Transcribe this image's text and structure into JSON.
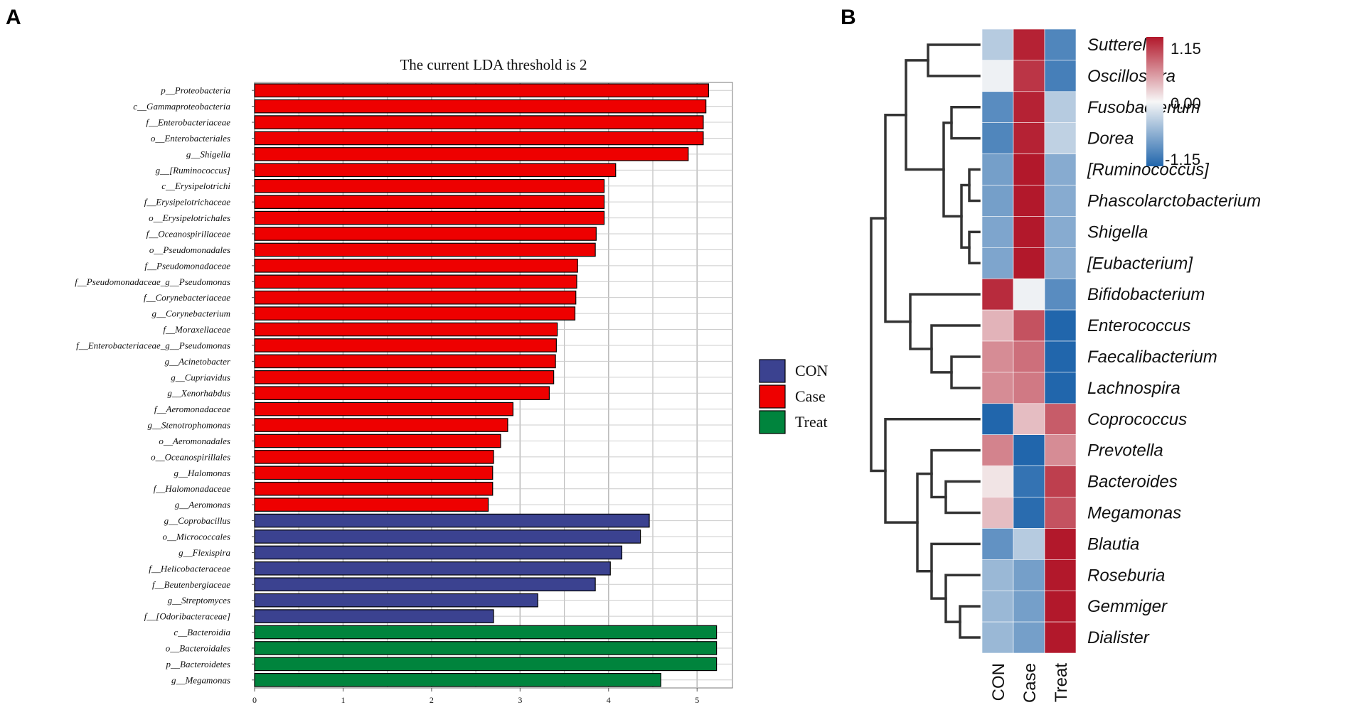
{
  "panels": {
    "a": "A",
    "b": "B"
  },
  "chart_data": [
    {
      "type": "bar",
      "orientation": "horizontal",
      "title": "The current LDA threshold is 2",
      "xlim": [
        0,
        5.4
      ],
      "xticks": [
        0,
        1,
        2,
        3,
        4,
        5
      ],
      "grid": true,
      "legend": {
        "placement": "right",
        "entries": [
          {
            "name": "CON",
            "color": "#3b4290"
          },
          {
            "name": "Case",
            "color": "#ee0000"
          },
          {
            "name": "Treat",
            "color": "#00843d"
          }
        ]
      },
      "bars": [
        {
          "label": "p__Proteobacteria",
          "value": 5.13,
          "group": "Case"
        },
        {
          "label": "c__Gammaproteobacteria",
          "value": 5.1,
          "group": "Case"
        },
        {
          "label": "f__Enterobacteriaceae",
          "value": 5.07,
          "group": "Case"
        },
        {
          "label": "o__Enterobacteriales",
          "value": 5.07,
          "group": "Case"
        },
        {
          "label": "g__Shigella",
          "value": 4.9,
          "group": "Case"
        },
        {
          "label": "g__[Ruminococcus]",
          "value": 4.08,
          "group": "Case"
        },
        {
          "label": "c__Erysipelotrichi",
          "value": 3.95,
          "group": "Case"
        },
        {
          "label": "f__Erysipelotrichaceae",
          "value": 3.95,
          "group": "Case"
        },
        {
          "label": "o__Erysipelotrichales",
          "value": 3.95,
          "group": "Case"
        },
        {
          "label": "f__Oceanospirillaceae",
          "value": 3.86,
          "group": "Case"
        },
        {
          "label": "o__Pseudomonadales",
          "value": 3.85,
          "group": "Case"
        },
        {
          "label": "f__Pseudomonadaceae",
          "value": 3.65,
          "group": "Case"
        },
        {
          "label": "f__Pseudomonadaceae_g__Pseudomonas",
          "value": 3.64,
          "group": "Case"
        },
        {
          "label": "f__Corynebacteriaceae",
          "value": 3.63,
          "group": "Case"
        },
        {
          "label": "g__Corynebacterium",
          "value": 3.62,
          "group": "Case"
        },
        {
          "label": "f__Moraxellaceae",
          "value": 3.42,
          "group": "Case"
        },
        {
          "label": "f__Enterobacteriaceae_g__Pseudomonas",
          "value": 3.41,
          "group": "Case"
        },
        {
          "label": "g__Acinetobacter",
          "value": 3.4,
          "group": "Case"
        },
        {
          "label": "g__Cupriavidus",
          "value": 3.38,
          "group": "Case"
        },
        {
          "label": "g__Xenorhabdus",
          "value": 3.33,
          "group": "Case"
        },
        {
          "label": "f__Aeromonadaceae",
          "value": 2.92,
          "group": "Case"
        },
        {
          "label": "g__Stenotrophomonas",
          "value": 2.86,
          "group": "Case"
        },
        {
          "label": "o__Aeromonadales",
          "value": 2.78,
          "group": "Case"
        },
        {
          "label": "o__Oceanospirillales",
          "value": 2.7,
          "group": "Case"
        },
        {
          "label": "g__Halomonas",
          "value": 2.69,
          "group": "Case"
        },
        {
          "label": "f__Halomonadaceae",
          "value": 2.69,
          "group": "Case"
        },
        {
          "label": "g__Aeromonas",
          "value": 2.64,
          "group": "Case"
        },
        {
          "label": "g__Coprobacillus",
          "value": 4.46,
          "group": "CON"
        },
        {
          "label": "o__Micrococcales",
          "value": 4.36,
          "group": "CON"
        },
        {
          "label": "g__Flexispira",
          "value": 4.15,
          "group": "CON"
        },
        {
          "label": "f__Helicobacteraceae",
          "value": 4.02,
          "group": "CON"
        },
        {
          "label": "f__Beutenbergiaceae",
          "value": 3.85,
          "group": "CON"
        },
        {
          "label": "g__Streptomyces",
          "value": 3.2,
          "group": "CON"
        },
        {
          "label": "f__[Odoribacteraceae]",
          "value": 2.7,
          "group": "CON"
        },
        {
          "label": "c__Bacteroidia",
          "value": 5.22,
          "group": "Treat"
        },
        {
          "label": "o__Bacteroidales",
          "value": 5.22,
          "group": "Treat"
        },
        {
          "label": "p__Bacteroidetes",
          "value": 5.22,
          "group": "Treat"
        },
        {
          "label": "g__Megamonas",
          "value": 4.59,
          "group": "Treat"
        }
      ]
    },
    {
      "type": "heatmap",
      "columns": [
        "CON",
        "Case",
        "Treat"
      ],
      "colorbar": {
        "max": 1.15,
        "mid": 0.0,
        "min": -1.15,
        "max_label": "1.15",
        "mid_label": "0.00",
        "min_label": "-1.15",
        "high_color": "#b2182b",
        "mid_color": "#f7f7f7",
        "low_color": "#2166ac"
      },
      "rows": [
        {
          "name": "Sutterella",
          "values": [
            -0.35,
            1.1,
            -0.9
          ]
        },
        {
          "name": "Oscillospira",
          "values": [
            -0.05,
            1.0,
            -0.95
          ]
        },
        {
          "name": "Fusobacterium",
          "values": [
            -0.85,
            1.1,
            -0.35
          ]
        },
        {
          "name": "Dorea",
          "values": [
            -0.9,
            1.1,
            -0.3
          ]
        },
        {
          "name": "[Ruminococcus]",
          "values": [
            -0.7,
            1.15,
            -0.6
          ]
        },
        {
          "name": "Phascolarctobacterium",
          "values": [
            -0.7,
            1.15,
            -0.6
          ]
        },
        {
          "name": "Shigella",
          "values": [
            -0.65,
            1.15,
            -0.6
          ]
        },
        {
          "name": "[Eubacterium]",
          "values": [
            -0.65,
            1.15,
            -0.6
          ]
        },
        {
          "name": "Bifidobacterium",
          "values": [
            1.05,
            -0.05,
            -0.85
          ]
        },
        {
          "name": "Enterococcus",
          "values": [
            0.35,
            0.85,
            -1.15
          ]
        },
        {
          "name": "Faecalibacterium",
          "values": [
            0.55,
            0.7,
            -1.15
          ]
        },
        {
          "name": "Lachnospira",
          "values": [
            0.55,
            0.65,
            -1.15
          ]
        },
        {
          "name": "Coprococcus",
          "values": [
            -1.15,
            0.3,
            0.8
          ]
        },
        {
          "name": "Prevotella",
          "values": [
            0.6,
            -1.15,
            0.55
          ]
        },
        {
          "name": "Bacteroides",
          "values": [
            0.1,
            -1.05,
            0.95
          ]
        },
        {
          "name": "Megamonas",
          "values": [
            0.3,
            -1.1,
            0.85
          ]
        },
        {
          "name": "Blautia",
          "values": [
            -0.8,
            -0.35,
            1.15
          ]
        },
        {
          "name": "Roseburia",
          "values": [
            -0.5,
            -0.7,
            1.15
          ]
        },
        {
          "name": "Gemmiger",
          "values": [
            -0.5,
            -0.7,
            1.15
          ]
        },
        {
          "name": "Dialister",
          "values": [
            -0.5,
            -0.7,
            1.15
          ]
        }
      ]
    }
  ]
}
